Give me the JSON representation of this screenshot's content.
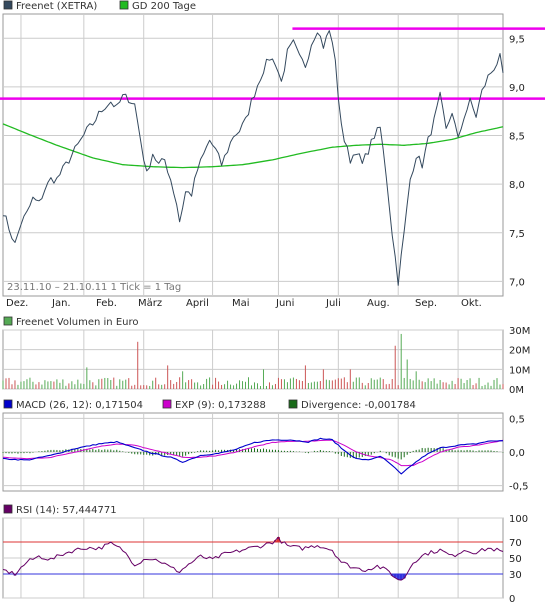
{
  "colors": {
    "price": "#34495e",
    "gd200": "#22bb22",
    "resistance": "#ee00ee",
    "vol_up": "#55aa55",
    "vol_down": "#cc5555",
    "macd": "#0000cc",
    "exp": "#cc00cc",
    "divergence": "#1a6b1a",
    "rsi": "#660066",
    "rsi_upper": "#dd3333",
    "rsi_lower": "#3333dd",
    "grid": "#cccccc"
  },
  "chart_data": [
    {
      "type": "line",
      "panel": "price",
      "legend": [
        {
          "name": "Freenet (XETRA)",
          "color_key": "price"
        },
        {
          "name": "GD 200 Tage",
          "color_key": "gd200"
        }
      ],
      "date_range_note": "23.11.10 – 21.10.11   1 Tick = 1 Tag",
      "x_labels": [
        "Dez.",
        "Jan.",
        "Feb.",
        "März",
        "April",
        "Mai",
        "Juni",
        "Juli",
        "Aug.",
        "Sep.",
        "Okt."
      ],
      "y_ticks": [
        {
          "label": "9,5",
          "value": 9.5
        },
        {
          "label": "9,0",
          "value": 9.0
        },
        {
          "label": "8,5",
          "value": 8.5
        },
        {
          "label": "8,0",
          "value": 8.0
        },
        {
          "label": "7,5",
          "value": 7.5
        },
        {
          "label": "7,0",
          "value": 7.0
        }
      ],
      "ylim": [
        6.85,
        9.75
      ],
      "price_keypoints": [
        [
          0,
          7.72
        ],
        [
          2,
          7.55
        ],
        [
          4,
          7.38
        ],
        [
          6,
          7.6
        ],
        [
          8,
          7.7
        ],
        [
          10,
          7.85
        ],
        [
          12,
          7.8
        ],
        [
          14,
          7.95
        ],
        [
          16,
          8.05
        ],
        [
          18,
          8.05
        ],
        [
          20,
          8.15
        ],
        [
          22,
          8.25
        ],
        [
          24,
          8.35
        ],
        [
          26,
          8.45
        ],
        [
          28,
          8.55
        ],
        [
          30,
          8.62
        ],
        [
          32,
          8.72
        ],
        [
          34,
          8.8
        ],
        [
          36,
          8.85
        ],
        [
          38,
          8.78
        ],
        [
          40,
          8.9
        ],
        [
          42,
          8.88
        ],
        [
          44,
          8.82
        ],
        [
          46,
          8.45
        ],
        [
          48,
          8.1
        ],
        [
          50,
          8.32
        ],
        [
          52,
          8.2
        ],
        [
          54,
          8.25
        ],
        [
          56,
          8.05
        ],
        [
          58,
          7.8
        ],
        [
          59,
          7.62
        ],
        [
          61,
          7.92
        ],
        [
          63,
          7.9
        ],
        [
          65,
          8.15
        ],
        [
          67,
          8.3
        ],
        [
          69,
          8.45
        ],
        [
          71,
          8.35
        ],
        [
          73,
          8.2
        ],
        [
          75,
          8.35
        ],
        [
          77,
          8.5
        ],
        [
          79,
          8.55
        ],
        [
          81,
          8.65
        ],
        [
          83,
          8.85
        ],
        [
          85,
          9.02
        ],
        [
          87,
          9.18
        ],
        [
          89,
          9.3
        ],
        [
          91,
          9.25
        ],
        [
          93,
          9.05
        ],
        [
          95,
          9.35
        ],
        [
          97,
          9.45
        ],
        [
          99,
          9.3
        ],
        [
          101,
          9.22
        ],
        [
          103,
          9.45
        ],
        [
          105,
          9.6
        ],
        [
          107,
          9.42
        ],
        [
          109,
          9.58
        ],
        [
          111,
          9.3
        ],
        [
          112,
          8.85
        ],
        [
          114,
          8.45
        ],
        [
          116,
          8.25
        ],
        [
          118,
          8.35
        ],
        [
          120,
          8.2
        ],
        [
          122,
          8.35
        ],
        [
          124,
          8.5
        ],
        [
          126,
          8.58
        ],
        [
          128,
          8.1
        ],
        [
          130,
          7.5
        ],
        [
          132,
          7.0
        ],
        [
          134,
          7.5
        ],
        [
          136,
          8.05
        ],
        [
          138,
          8.3
        ],
        [
          140,
          8.2
        ],
        [
          142,
          8.45
        ],
        [
          144,
          8.65
        ],
        [
          146,
          8.9
        ],
        [
          148,
          8.55
        ],
        [
          150,
          8.75
        ],
        [
          152,
          8.45
        ],
        [
          154,
          8.7
        ],
        [
          156,
          8.85
        ],
        [
          158,
          8.7
        ],
        [
          160,
          8.95
        ],
        [
          162,
          9.1
        ],
        [
          164,
          9.2
        ],
        [
          166,
          9.3
        ],
        [
          167,
          9.1
        ]
      ],
      "gd200_keypoints": [
        [
          0,
          8.62
        ],
        [
          8,
          8.52
        ],
        [
          18,
          8.4
        ],
        [
          30,
          8.27
        ],
        [
          40,
          8.2
        ],
        [
          50,
          8.18
        ],
        [
          60,
          8.17
        ],
        [
          70,
          8.18
        ],
        [
          80,
          8.2
        ],
        [
          90,
          8.25
        ],
        [
          100,
          8.32
        ],
        [
          110,
          8.38
        ],
        [
          118,
          8.4
        ],
        [
          126,
          8.41
        ],
        [
          134,
          8.4
        ],
        [
          142,
          8.42
        ],
        [
          150,
          8.46
        ],
        [
          158,
          8.53
        ],
        [
          167,
          8.59
        ]
      ],
      "resistance_lines": [
        {
          "value": 9.6,
          "from_index": 95
        },
        {
          "value": 8.88,
          "from_index": 0
        }
      ]
    },
    {
      "type": "bar",
      "panel": "volume",
      "legend": [
        {
          "name": "Freenet Volumen in Euro",
          "color_key": "vol_up"
        }
      ],
      "y_ticks": [
        {
          "label": "30M",
          "value": 30
        },
        {
          "label": "20M",
          "value": 20
        },
        {
          "label": "10M",
          "value": 10
        },
        {
          "label": "0M",
          "value": 0
        }
      ],
      "ylim": [
        0,
        30
      ],
      "unit": "M Euro",
      "spikes": [
        [
          45,
          24
        ],
        [
          28,
          11
        ],
        [
          55,
          12
        ],
        [
          60,
          9
        ],
        [
          87,
          10
        ],
        [
          101,
          12
        ],
        [
          107,
          10
        ],
        [
          116,
          10
        ],
        [
          131,
          22
        ],
        [
          133,
          28
        ],
        [
          135,
          15
        ],
        [
          138,
          9
        ]
      ]
    },
    {
      "type": "line",
      "panel": "macd",
      "legend": [
        {
          "name": "MACD (26, 12): 0,171504",
          "color_key": "macd"
        },
        {
          "name": "EXP (9): 0,173288",
          "color_key": "exp"
        },
        {
          "name": "Divergence: -0,001784",
          "color_key": "divergence"
        }
      ],
      "y_ticks": [
        {
          "label": "0,5",
          "value": 0.5
        },
        {
          "label": "0,0",
          "value": 0.0
        },
        {
          "label": "-0,5",
          "value": -0.5
        }
      ],
      "ylim": [
        -0.58,
        0.58
      ],
      "macd_keypoints": [
        [
          0,
          -0.1
        ],
        [
          8,
          -0.12
        ],
        [
          16,
          -0.05
        ],
        [
          24,
          0.05
        ],
        [
          32,
          0.12
        ],
        [
          38,
          0.15
        ],
        [
          44,
          0.06
        ],
        [
          50,
          -0.02
        ],
        [
          56,
          -0.08
        ],
        [
          60,
          -0.15
        ],
        [
          66,
          -0.05
        ],
        [
          72,
          -0.02
        ],
        [
          78,
          0.04
        ],
        [
          84,
          0.14
        ],
        [
          90,
          0.18
        ],
        [
          96,
          0.18
        ],
        [
          102,
          0.15
        ],
        [
          106,
          0.2
        ],
        [
          110,
          0.18
        ],
        [
          114,
          0.02
        ],
        [
          118,
          -0.1
        ],
        [
          122,
          -0.12
        ],
        [
          126,
          -0.06
        ],
        [
          130,
          -0.2
        ],
        [
          133,
          -0.33
        ],
        [
          137,
          -0.18
        ],
        [
          141,
          -0.05
        ],
        [
          146,
          0.06
        ],
        [
          152,
          0.1
        ],
        [
          158,
          0.12
        ],
        [
          162,
          0.16
        ],
        [
          167,
          0.17
        ]
      ],
      "exp_keypoints": [
        [
          0,
          -0.08
        ],
        [
          8,
          -0.1
        ],
        [
          16,
          -0.08
        ],
        [
          24,
          0.0
        ],
        [
          32,
          0.08
        ],
        [
          38,
          0.12
        ],
        [
          44,
          0.1
        ],
        [
          50,
          0.03
        ],
        [
          56,
          -0.03
        ],
        [
          60,
          -0.08
        ],
        [
          66,
          -0.08
        ],
        [
          72,
          -0.05
        ],
        [
          78,
          0.0
        ],
        [
          84,
          0.08
        ],
        [
          90,
          0.14
        ],
        [
          96,
          0.16
        ],
        [
          102,
          0.16
        ],
        [
          106,
          0.17
        ],
        [
          110,
          0.18
        ],
        [
          114,
          0.1
        ],
        [
          118,
          0.0
        ],
        [
          122,
          -0.06
        ],
        [
          126,
          -0.08
        ],
        [
          130,
          -0.12
        ],
        [
          133,
          -0.2
        ],
        [
          137,
          -0.2
        ],
        [
          141,
          -0.12
        ],
        [
          146,
          0.0
        ],
        [
          152,
          0.07
        ],
        [
          158,
          0.1
        ],
        [
          162,
          0.13
        ],
        [
          167,
          0.17
        ]
      ]
    },
    {
      "type": "line",
      "panel": "rsi",
      "legend": [
        {
          "name": "RSI (14): 57,444771",
          "color_key": "rsi"
        }
      ],
      "y_ticks": [
        {
          "label": "100",
          "value": 100,
          "color_key": null
        },
        {
          "label": "70",
          "value": 70,
          "color_key": "rsi_upper"
        },
        {
          "label": "50",
          "value": 50,
          "color_key": null
        },
        {
          "label": "30",
          "value": 30,
          "color_key": "rsi_lower"
        },
        {
          "label": "0",
          "value": 0,
          "color_key": null
        }
      ],
      "ylim": [
        0,
        100
      ],
      "upper_band": 70,
      "lower_band": 30,
      "rsi_keypoints": [
        [
          0,
          35
        ],
        [
          4,
          30
        ],
        [
          8,
          45
        ],
        [
          12,
          52
        ],
        [
          16,
          48
        ],
        [
          20,
          55
        ],
        [
          24,
          60
        ],
        [
          28,
          63
        ],
        [
          32,
          62
        ],
        [
          36,
          68
        ],
        [
          40,
          60
        ],
        [
          44,
          42
        ],
        [
          48,
          50
        ],
        [
          52,
          47
        ],
        [
          56,
          38
        ],
        [
          59,
          33
        ],
        [
          62,
          42
        ],
        [
          66,
          52
        ],
        [
          70,
          48
        ],
        [
          74,
          55
        ],
        [
          78,
          58
        ],
        [
          82,
          62
        ],
        [
          86,
          65
        ],
        [
          90,
          70
        ],
        [
          92,
          74
        ],
        [
          95,
          65
        ],
        [
          100,
          62
        ],
        [
          105,
          66
        ],
        [
          110,
          60
        ],
        [
          113,
          45
        ],
        [
          117,
          38
        ],
        [
          121,
          35
        ],
        [
          125,
          40
        ],
        [
          129,
          33
        ],
        [
          132,
          22
        ],
        [
          134,
          25
        ],
        [
          137,
          45
        ],
        [
          141,
          55
        ],
        [
          146,
          60
        ],
        [
          150,
          52
        ],
        [
          154,
          60
        ],
        [
          158,
          57
        ],
        [
          162,
          62
        ],
        [
          165,
          60
        ],
        [
          167,
          57
        ]
      ]
    }
  ]
}
